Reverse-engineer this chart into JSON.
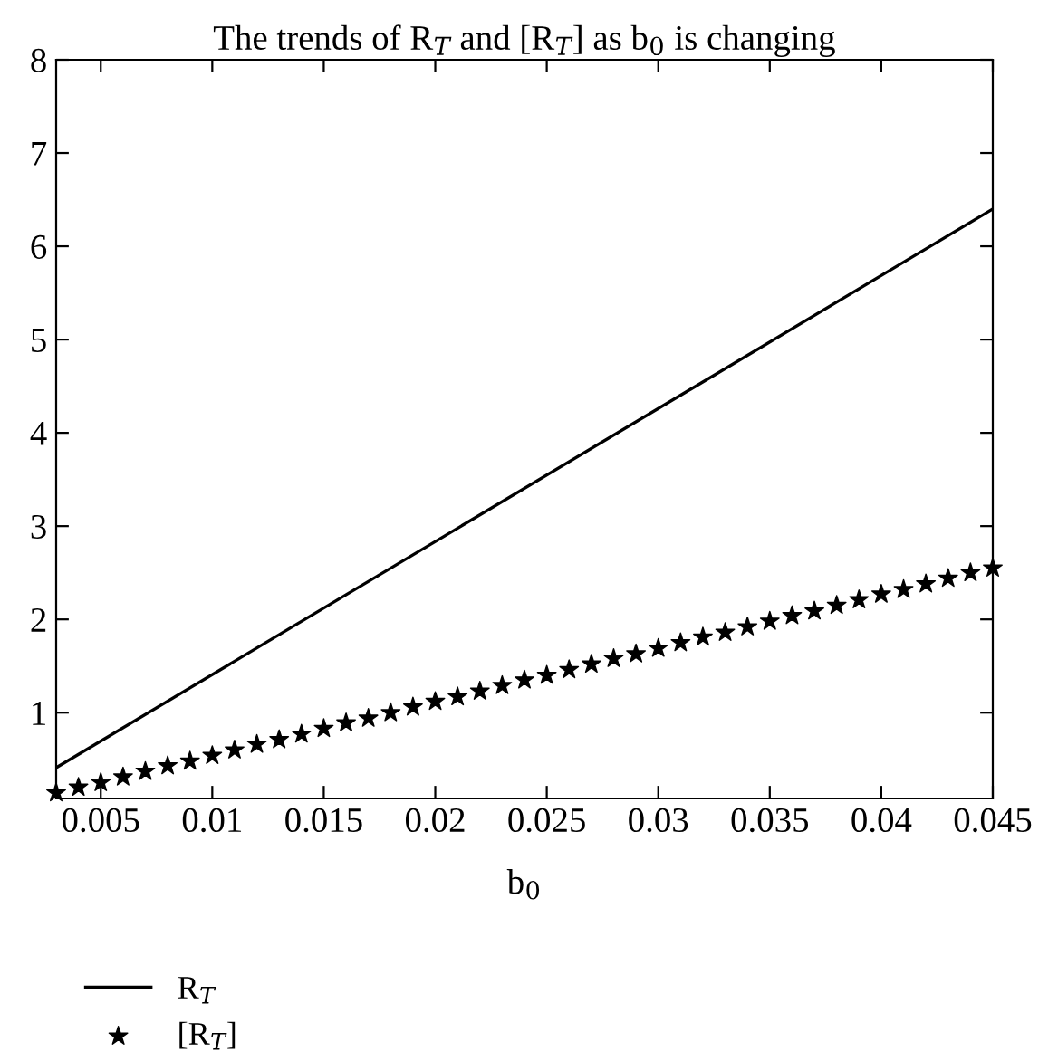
{
  "chart_data": {
    "type": "line",
    "title": "The trends of R$_{T}$ and [R$_{T}$] as b$_{0}$ is changing",
    "xlabel": "b$_{0}$",
    "xlim": [
      0.003,
      0.045
    ],
    "xticks": [
      0.005,
      0.01,
      0.015,
      0.02,
      0.025,
      0.03,
      0.035,
      0.04,
      0.045
    ],
    "ylim": [
      0.08,
      8
    ],
    "yticks": [
      1,
      2,
      3,
      4,
      5,
      6,
      7,
      8
    ],
    "grid": false,
    "legend": "bottom left",
    "series": [
      {
        "name": "R$_{T}$",
        "color": "#000000",
        "marker": "none",
        "x": [
          0.003,
          0.045
        ],
        "values": [
          0.41,
          6.4
        ]
      },
      {
        "name": "[R$_{T}$]",
        "type": "scatter",
        "color": "#000000",
        "marker": "star",
        "x": [
          0.003,
          0.004,
          0.005,
          0.006,
          0.007,
          0.008,
          0.009,
          0.01,
          0.011,
          0.012,
          0.013,
          0.014,
          0.015,
          0.016,
          0.017,
          0.018,
          0.019,
          0.02,
          0.021,
          0.022,
          0.023,
          0.024,
          0.025,
          0.026,
          0.027,
          0.028,
          0.029,
          0.03,
          0.031,
          0.032,
          0.033,
          0.034,
          0.035,
          0.036,
          0.037,
          0.038,
          0.039,
          0.04,
          0.041,
          0.042,
          0.043,
          0.044,
          0.045
        ],
        "values": [
          0.14,
          0.2,
          0.25,
          0.31,
          0.37,
          0.43,
          0.48,
          0.54,
          0.6,
          0.66,
          0.71,
          0.77,
          0.83,
          0.89,
          0.94,
          1.0,
          1.06,
          1.12,
          1.17,
          1.23,
          1.29,
          1.35,
          1.4,
          1.46,
          1.52,
          1.58,
          1.63,
          1.69,
          1.75,
          1.81,
          1.86,
          1.92,
          1.98,
          2.04,
          2.09,
          2.15,
          2.21,
          2.27,
          2.32,
          2.38,
          2.44,
          2.5,
          2.55
        ]
      }
    ]
  }
}
